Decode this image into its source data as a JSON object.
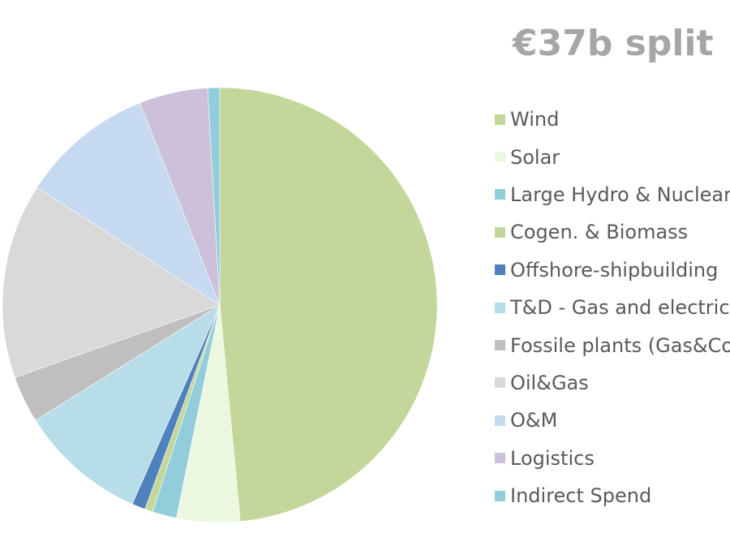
{
  "chart_data": {
    "type": "pie",
    "title": "€37b split",
    "legend_position": "right",
    "start_angle_deg": 0,
    "direction": "clockwise",
    "slices": [
      {
        "label": "Wind",
        "value": 48.5,
        "color": "#c4d79b"
      },
      {
        "label": "Solar",
        "value": 4.7,
        "color": "#ebf7de"
      },
      {
        "label": "Large Hydro & Nuclear",
        "value": 1.8,
        "color": "#92cddc"
      },
      {
        "label": "Cogen. & Biomass",
        "value": 0.6,
        "color": "#c4d79b"
      },
      {
        "label": "Offshore-shipbuilding",
        "value": 1.0,
        "color": "#4f81bd"
      },
      {
        "label": "T&D - Gas and electric",
        "value": 9.5,
        "color": "#b7dde8"
      },
      {
        "label": "Fossile plants (Gas&Coal)",
        "value": 3.5,
        "color": "#bfbfbf"
      },
      {
        "label": "Oil&Gas",
        "value": 14.5,
        "color": "#d9d9d9"
      },
      {
        "label": "O&M",
        "value": 9.9,
        "color": "#c5d9f1"
      },
      {
        "label": "Logistics",
        "value": 5.1,
        "color": "#ccc0da"
      },
      {
        "label": "Indirect Spend",
        "value": 0.9,
        "color": "#92cddc"
      }
    ]
  }
}
